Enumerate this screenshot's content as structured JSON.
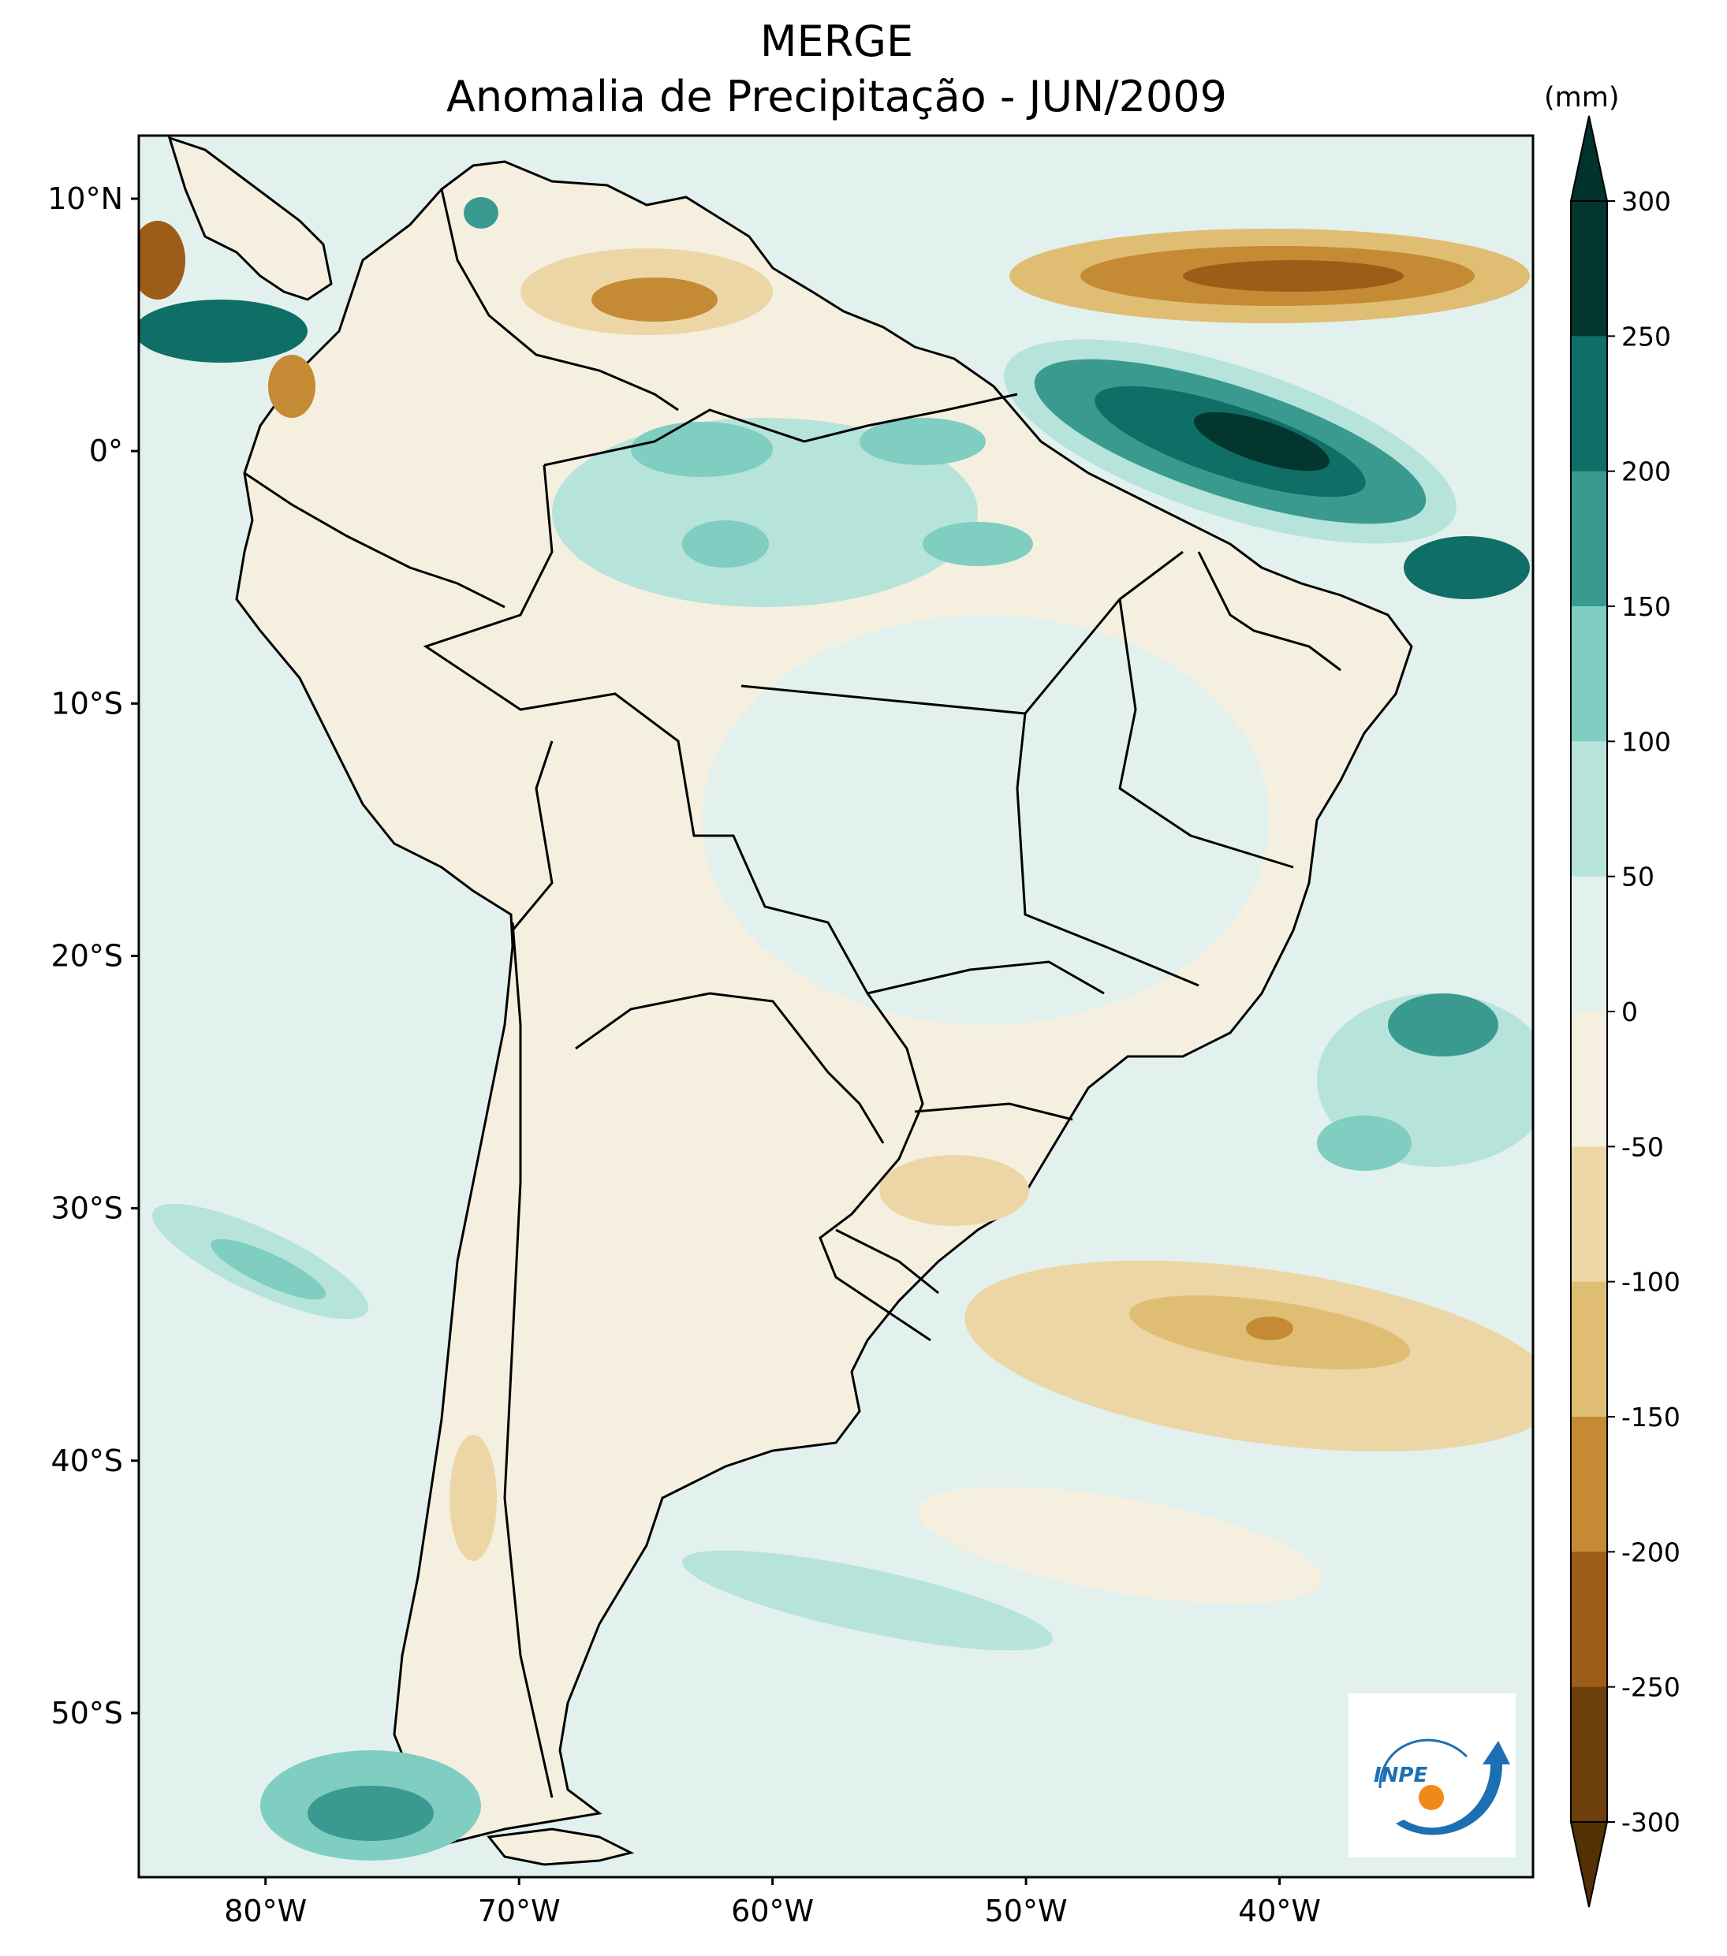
{
  "map": {
    "source": "MERGE",
    "title": "Anomalia de Precipitação - JUN/2009",
    "region": "América do Sul",
    "lat_ticks": [
      "10°N",
      "0°",
      "10°S",
      "20°S",
      "30°S",
      "40°S",
      "50°S"
    ],
    "lon_ticks": [
      "80°W",
      "70°W",
      "60°W",
      "50°W",
      "40°W"
    ],
    "lat_values": [
      10,
      0,
      -10,
      -20,
      -30,
      -40,
      -50
    ],
    "lon_values": [
      -80,
      -70,
      -60,
      -50,
      -40
    ],
    "extent": {
      "lon_min": -85,
      "lon_max": -30,
      "lat_min": -56.5,
      "lat_max": 12.5
    }
  },
  "colorbar": {
    "unit": "(mm)",
    "levels": [
      300,
      250,
      200,
      150,
      100,
      50,
      0,
      -50,
      -100,
      -150,
      -200,
      -250,
      -300
    ],
    "labels": [
      "300",
      "250",
      "200",
      "150",
      "100",
      "50",
      "0",
      "-50",
      "-100",
      "-150",
      "-200",
      "-250",
      "-300"
    ],
    "colors": [
      "#02362f",
      "#0f6e66",
      "#3a9a8f",
      "#80cdc1",
      "#b6e3da",
      "#e2f1ee",
      "#f5efe0",
      "#ecd6a6",
      "#dfbe74",
      "#c58a34",
      "#9d5d18",
      "#6c3f0d"
    ],
    "over_color": "#01332c",
    "under_color": "#543005"
  },
  "logo": {
    "text": "INPE"
  },
  "palette": {
    "ocean_base": "#e2f1ee",
    "land_base": "#f5efe0",
    "border": "#000000"
  }
}
